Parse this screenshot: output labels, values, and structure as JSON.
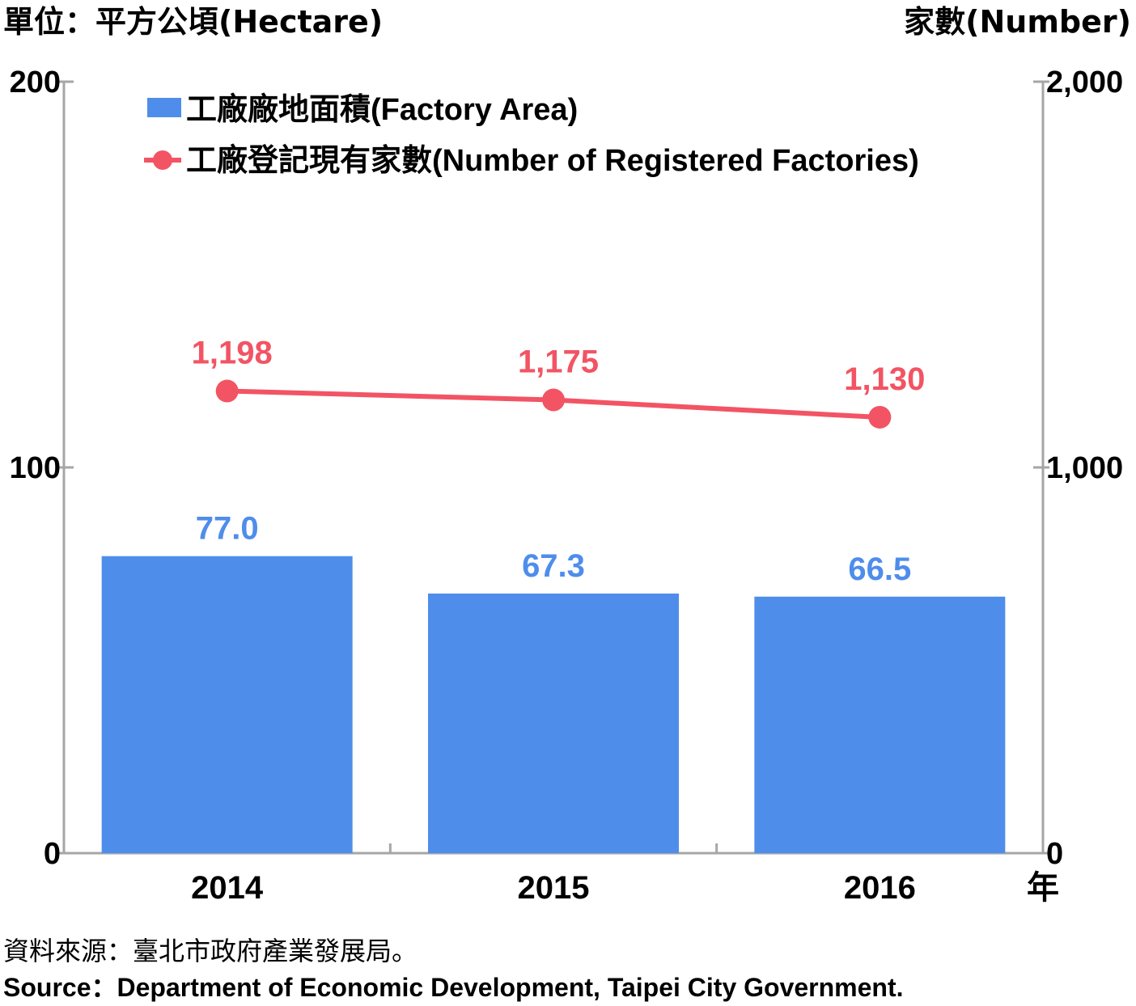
{
  "header": {
    "left_unit": "單位：平方公頃(Hectare)",
    "right_unit": "家數(Number)"
  },
  "chart_data": {
    "type": "bar",
    "categories": [
      "2014",
      "2015",
      "2016"
    ],
    "x_unit_label": "年",
    "left_axis": {
      "ticks": [
        "0",
        "100",
        "200"
      ],
      "ylim": [
        0,
        200
      ]
    },
    "right_axis": {
      "ticks": [
        "0",
        "1,000",
        "2,000"
      ],
      "ylim": [
        0,
        2000
      ]
    },
    "series": [
      {
        "name": "工廠廠地面積(Factory Area)",
        "type": "bar",
        "axis": "left",
        "values": [
          77.0,
          67.3,
          66.5
        ],
        "labels": [
          "77.0",
          "67.3",
          "66.5"
        ],
        "color": "#4f8deb"
      },
      {
        "name": "工廠登記現有家數(Number of Registered Factories)",
        "type": "line",
        "axis": "right",
        "values": [
          1198,
          1175,
          1130
        ],
        "labels": [
          "1,198",
          "1,175",
          "1,130"
        ],
        "color": "#f25464"
      }
    ],
    "legend": "top-left",
    "grid": false
  },
  "source": {
    "zh": "資料來源：臺北市政府產業發展局。",
    "en": "Source：Department of Economic Development, Taipei City Government."
  }
}
